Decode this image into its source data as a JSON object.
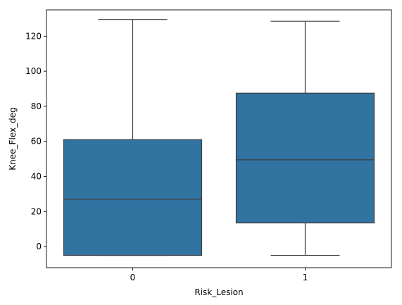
{
  "chart_data": {
    "type": "box",
    "xlabel": "Risk_Lesion",
    "ylabel": "Knee_Flex_deg",
    "categories": [
      "0",
      "1"
    ],
    "ylim": [
      -12,
      135
    ],
    "yticks": [
      0,
      20,
      40,
      60,
      80,
      100,
      120
    ],
    "grid": false,
    "boxes": [
      {
        "category": "0",
        "whisker_low": -5,
        "q1": -5,
        "median": 27,
        "q3": 61,
        "whisker_high": 129.5
      },
      {
        "category": "1",
        "whisker_low": -5,
        "q1": 13.5,
        "median": 49.5,
        "q3": 87.5,
        "whisker_high": 128.5
      }
    ],
    "colors": {
      "box_fill": "#3274a1",
      "line": "#3d3d3d",
      "axis": "#000000"
    }
  }
}
